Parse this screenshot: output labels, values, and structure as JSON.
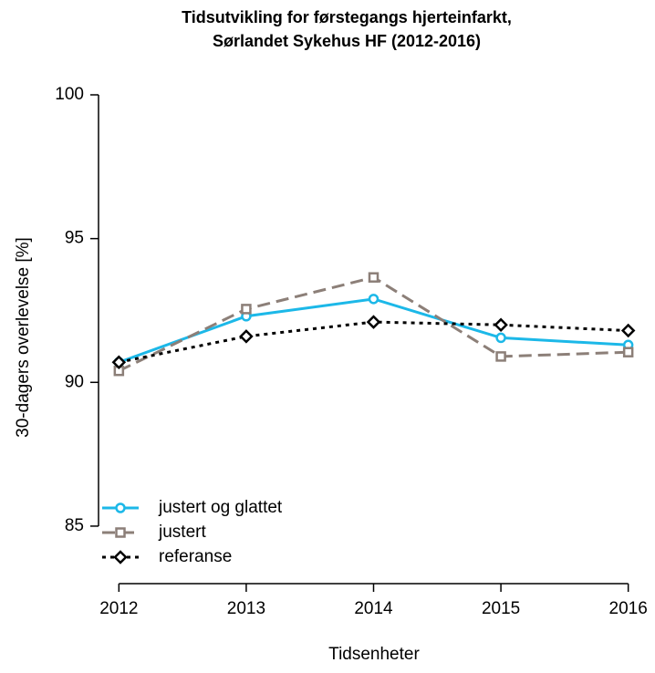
{
  "chart_data": {
    "type": "line",
    "title": "Tidsutvikling for førstegangs hjerteinfarkt,",
    "subtitle": "Sørlandet Sykehus HF (2012-2016)",
    "x_label": "Tidsenheter",
    "y_label": "30-dagers overlevelse [%]",
    "x": [
      2012,
      2013,
      2014,
      2015,
      2016
    ],
    "xlim": [
      2011.84,
      2016.16
    ],
    "xticks": [
      2012,
      2013,
      2014,
      2015,
      2016
    ],
    "ylim": [
      83,
      100
    ],
    "yticks": [
      85,
      90,
      95,
      100
    ],
    "legend": "bottom-left",
    "series": [
      {
        "name": "justert og glattet",
        "color": "#1cb8e8",
        "marker": "circle",
        "dash": "solid",
        "values": [
          90.7,
          92.3,
          92.9,
          91.55,
          91.3
        ]
      },
      {
        "name": "justert",
        "color": "#8c7f78",
        "marker": "square",
        "dash": "dashed",
        "values": [
          90.4,
          92.55,
          93.65,
          90.9,
          91.05
        ]
      },
      {
        "name": "referanse",
        "color": "#000000",
        "marker": "diamond",
        "dash": "dotted",
        "values": [
          90.7,
          91.6,
          92.1,
          92.0,
          91.8
        ]
      }
    ]
  }
}
